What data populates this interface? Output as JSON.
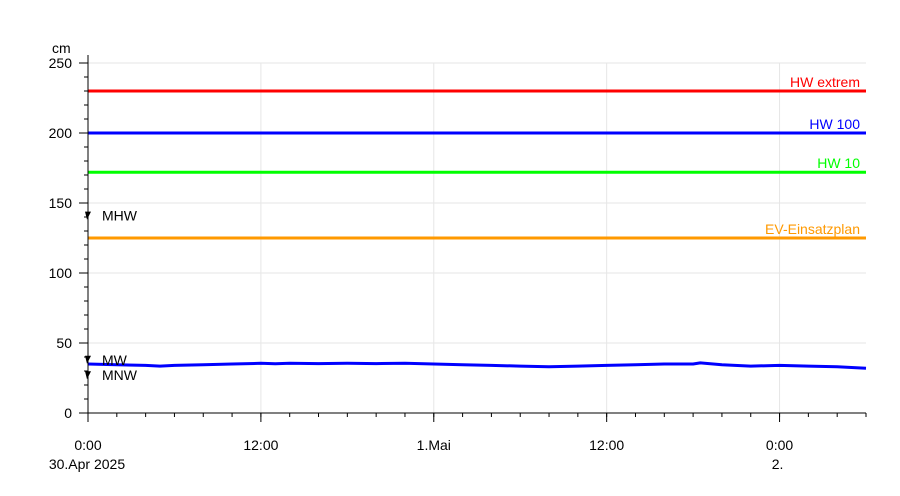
{
  "chart_data": {
    "type": "line",
    "title": "",
    "ylabel": "cm",
    "ylim": [
      0,
      250
    ],
    "y_major_ticks": [
      0,
      50,
      100,
      150,
      200,
      250
    ],
    "y_minor_step": 10,
    "x_range_hours": [
      0,
      54
    ],
    "x_ticks": [
      {
        "h": 0,
        "line1": "0:00",
        "line2": "30.Apr 2025"
      },
      {
        "h": 12,
        "line1": "12:00",
        "line2": ""
      },
      {
        "h": 24,
        "line1": "1.Mai",
        "line2": ""
      },
      {
        "h": 36,
        "line1": "12:00",
        "line2": ""
      },
      {
        "h": 48,
        "line1": "0:00",
        "line2": "2."
      }
    ],
    "x_minor_step_hours": 2,
    "grid": true,
    "thresholds": [
      {
        "name": "HW extrem",
        "value": 230,
        "color": "#ff0000"
      },
      {
        "name": "HW 100",
        "value": 200,
        "color": "#0000ff"
      },
      {
        "name": "HW 10",
        "value": 172,
        "color": "#00ff00"
      },
      {
        "name": "EV-Einsatzplan",
        "value": 125,
        "color": "#ff9900"
      }
    ],
    "markers": [
      {
        "name": "MHW",
        "value": 141
      },
      {
        "name": "MW",
        "value": 38
      },
      {
        "name": "MNW",
        "value": 27
      }
    ],
    "series": [
      {
        "color": "#0000ff",
        "x_hours": [
          0,
          2,
          4,
          5,
          6,
          8,
          10,
          12,
          13,
          14,
          16,
          18,
          20,
          22,
          24,
          26,
          28,
          30,
          32,
          34,
          36,
          38,
          40,
          42,
          42.5,
          44,
          46,
          48,
          50,
          52,
          54
        ],
        "values": [
          35,
          34.5,
          34,
          33.5,
          34,
          34.5,
          35,
          35.5,
          35.2,
          35.5,
          35.3,
          35.5,
          35.3,
          35.5,
          35,
          34.5,
          34,
          33.5,
          33,
          33.5,
          34,
          34.5,
          35,
          35,
          35.8,
          34.5,
          33.5,
          34,
          33.5,
          33,
          32
        ]
      }
    ]
  }
}
